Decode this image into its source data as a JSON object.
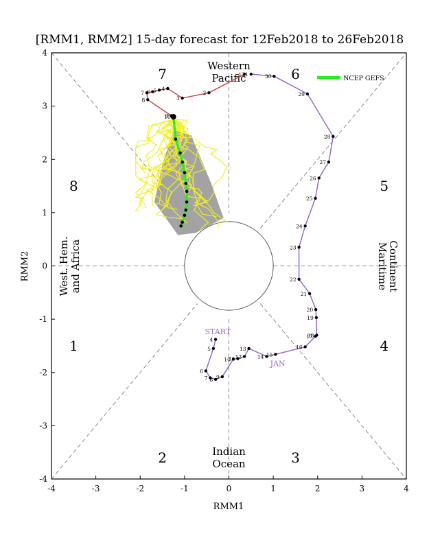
{
  "chart_data": {
    "type": "line",
    "title": "[RMM1, RMM2] 15-day forecast for 12Feb2018 to 26Feb2018",
    "xlabel": "RMM1",
    "ylabel": "RMM2",
    "xlim": [
      -4,
      4
    ],
    "ylim": [
      -4,
      4
    ],
    "x_ticks": [
      -4,
      -3,
      -2,
      -1,
      0,
      1,
      2,
      3,
      4
    ],
    "y_ticks": [
      -4,
      -3,
      -2,
      -1,
      0,
      1,
      2,
      3,
      4
    ],
    "grid": false,
    "legend_position": "top-right",
    "colors": {
      "observed_jan": "#9966cc",
      "observed_feb": "#cc4444",
      "forecast_mean": "#22ee22",
      "members": "#f2ee22",
      "spread": "#999999"
    },
    "phases": [
      {
        "label": "1",
        "x": -3.5,
        "y": -1.5
      },
      {
        "label": "2",
        "x": -1.5,
        "y": -3.6
      },
      {
        "label": "3",
        "x": 1.5,
        "y": -3.6
      },
      {
        "label": "4",
        "x": 3.5,
        "y": -1.5
      },
      {
        "label": "5",
        "x": 3.5,
        "y": 1.5
      },
      {
        "label": "6",
        "x": 1.5,
        "y": 3.6
      },
      {
        "label": "7",
        "x": -1.5,
        "y": 3.6
      },
      {
        "label": "8",
        "x": -3.5,
        "y": 1.5
      }
    ],
    "regions": {
      "top": [
        "Western",
        "Pacific"
      ],
      "bottom": [
        "Indian",
        "Ocean"
      ],
      "left": [
        "West. Hem.",
        "and Africa"
      ],
      "right": [
        "Maritime",
        "Continent"
      ]
    },
    "annotations": [
      {
        "text": "START",
        "x": -0.25,
        "y": -1.28
      },
      {
        "text": "JAN",
        "x": 1.1,
        "y": -1.88
      }
    ],
    "series": [
      {
        "name": "",
        "points": [
          {
            "label": "4",
            "x": -0.3,
            "y": -1.38
          },
          {
            "label": "5",
            "x": -0.35,
            "y": -1.55
          },
          {
            "label": "6",
            "x": -0.52,
            "y": -1.97
          },
          {
            "label": "7",
            "x": -0.42,
            "y": -2.1
          },
          {
            "label": "8",
            "x": -0.3,
            "y": -2.13
          },
          {
            "label": "9",
            "x": -0.15,
            "y": -2.08
          },
          {
            "label": "10",
            "x": 0.1,
            "y": -1.75
          },
          {
            "label": "11",
            "x": 0.2,
            "y": -1.74
          },
          {
            "label": "12",
            "x": 0.35,
            "y": -1.7
          },
          {
            "label": "13",
            "x": 0.45,
            "y": -1.55
          },
          {
            "label": "14",
            "x": 0.85,
            "y": -1.7
          },
          {
            "label": "15",
            "x": 1.05,
            "y": -1.66
          },
          {
            "label": "16",
            "x": 1.72,
            "y": -1.52
          },
          {
            "label": "17",
            "x": 1.95,
            "y": -1.32
          },
          {
            "label": "18",
            "x": 1.98,
            "y": -1.3
          },
          {
            "label": "19",
            "x": 1.97,
            "y": -0.97
          },
          {
            "label": "20",
            "x": 1.96,
            "y": -0.82
          },
          {
            "label": "21",
            "x": 1.82,
            "y": -0.52
          },
          {
            "label": "22",
            "x": 1.58,
            "y": -0.25
          },
          {
            "label": "23",
            "x": 1.58,
            "y": 0.35
          },
          {
            "label": "24",
            "x": 1.72,
            "y": 0.75
          },
          {
            "label": "25",
            "x": 1.95,
            "y": 1.27
          },
          {
            "label": "26",
            "x": 2.03,
            "y": 1.65
          },
          {
            "label": "27",
            "x": 2.25,
            "y": 1.95
          },
          {
            "label": "28",
            "x": 2.35,
            "y": 2.43
          },
          {
            "label": "29",
            "x": 1.77,
            "y": 3.23
          },
          {
            "label": "30",
            "x": 1.02,
            "y": 3.56
          },
          {
            "label": "31",
            "x": 0.5,
            "y": 3.6
          }
        ]
      },
      {
        "name": "",
        "points": [
          {
            "label": "1",
            "x": 0.35,
            "y": 3.6
          },
          {
            "label": "2",
            "x": -0.45,
            "y": 3.25
          },
          {
            "label": "3",
            "x": -1.05,
            "y": 3.15
          },
          {
            "label": "4",
            "x": -1.38,
            "y": 3.33
          },
          {
            "label": "5",
            "x": -1.57,
            "y": 3.3
          },
          {
            "label": "6",
            "x": -1.72,
            "y": 3.27
          },
          {
            "label": "7",
            "x": -1.85,
            "y": 3.25
          },
          {
            "label": "8",
            "x": -1.83,
            "y": 3.12
          },
          {
            "label": "9",
            "x": -1.3,
            "y": 2.82
          },
          {
            "label": "10",
            "x": -1.25,
            "y": 2.8
          }
        ]
      },
      {
        "name": "NCEP GEFS",
        "points": [
          {
            "x": -1.25,
            "y": 2.8
          },
          {
            "x": -1.2,
            "y": 2.38
          },
          {
            "x": -1.1,
            "y": 2.12
          },
          {
            "x": -1.05,
            "y": 1.95
          },
          {
            "x": -1.0,
            "y": 1.75
          },
          {
            "x": -0.97,
            "y": 1.55
          },
          {
            "x": -0.95,
            "y": 1.4
          },
          {
            "x": -0.95,
            "y": 1.2
          },
          {
            "x": -0.97,
            "y": 1.05
          },
          {
            "x": -1.0,
            "y": 0.95
          },
          {
            "x": -1.05,
            "y": 0.82
          },
          {
            "x": -1.08,
            "y": 0.75
          }
        ]
      }
    ],
    "spread_polygon": [
      {
        "x": -1.25,
        "y": 2.55
      },
      {
        "x": -0.85,
        "y": 2.45
      },
      {
        "x": -0.4,
        "y": 1.55
      },
      {
        "x": -0.12,
        "y": 0.9
      },
      {
        "x": -0.75,
        "y": 0.62
      },
      {
        "x": -1.15,
        "y": 0.58
      },
      {
        "x": -1.68,
        "y": 1.2
      },
      {
        "x": -1.5,
        "y": 1.9
      }
    ]
  }
}
